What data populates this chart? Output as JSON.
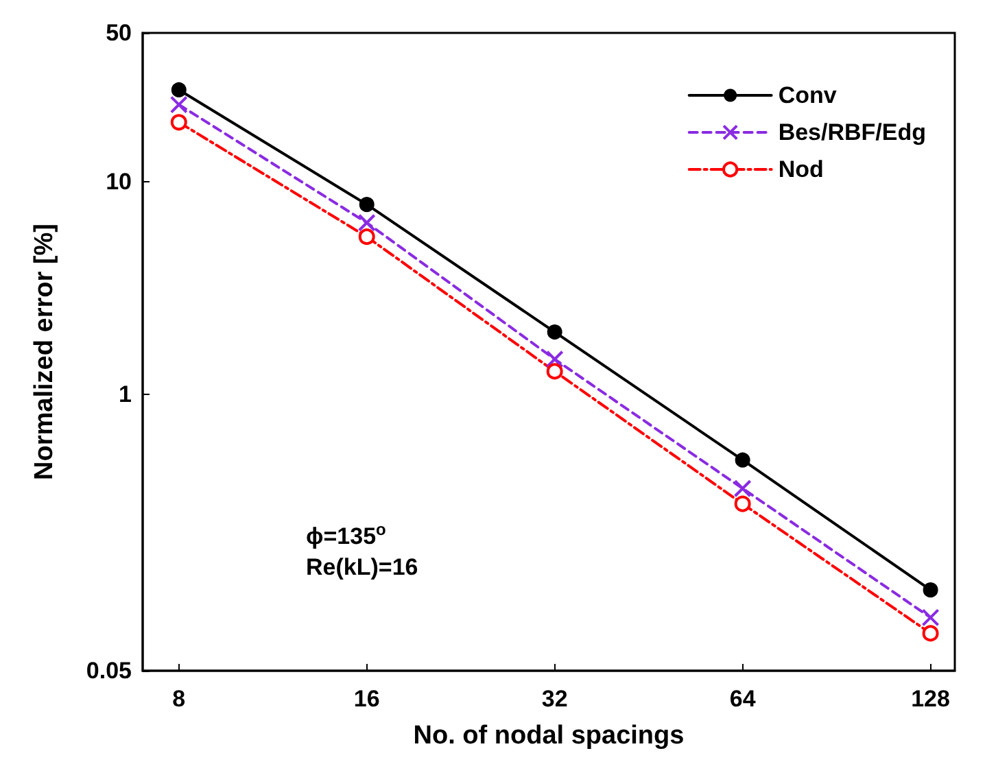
{
  "chart_data": {
    "type": "line",
    "xlabel": "No. of nodal spacings",
    "ylabel": "Normalized error [%]",
    "x": [
      8,
      16,
      32,
      64,
      128
    ],
    "series": [
      {
        "name": "Conv",
        "color": "#000000",
        "marker": "circle",
        "line_style": "solid",
        "values": [
          27,
          7.8,
          1.96,
          0.49,
          0.12
        ]
      },
      {
        "name": "Bes/RBF/Edg",
        "color": "#8a2be2",
        "marker": "cross",
        "line_style": "dashed",
        "values": [
          23,
          6.4,
          1.46,
          0.36,
          0.089
        ]
      },
      {
        "name": "Nod",
        "color": "#ff0000",
        "marker": "open_circle",
        "line_style": "dashdot",
        "values": [
          19,
          5.5,
          1.28,
          0.305,
          0.075
        ]
      }
    ],
    "log": "xy",
    "xlim": [
      7,
      140
    ],
    "xticks": [
      8,
      16,
      32,
      64,
      128
    ],
    "ylim": [
      0.05,
      50
    ],
    "yticks": [
      0.05,
      1,
      10,
      50
    ],
    "grid": false,
    "legend": "top right",
    "annotations": [
      "ϕ=135$^{o}$",
      "Re(kL)=16"
    ]
  }
}
